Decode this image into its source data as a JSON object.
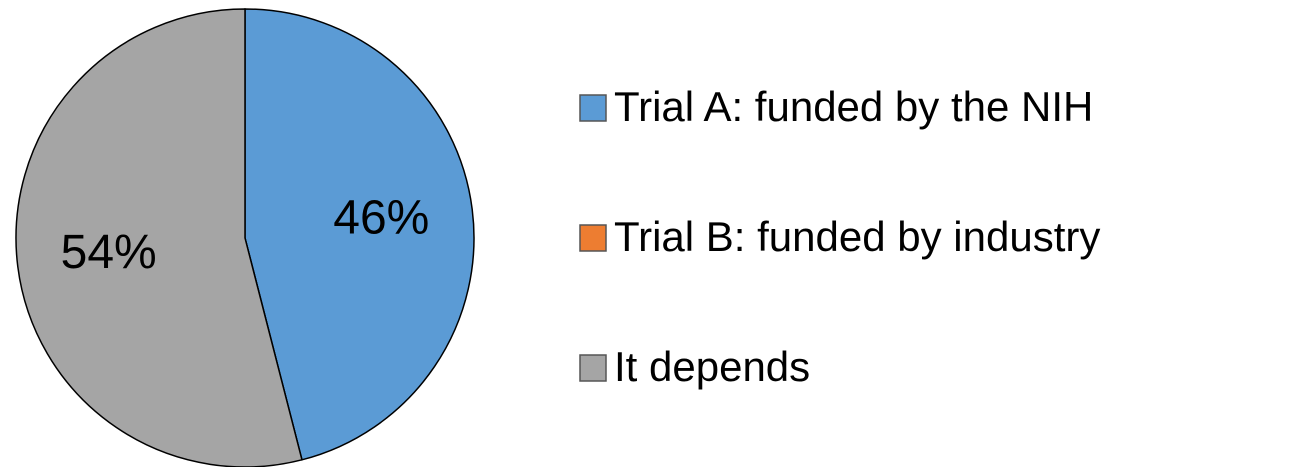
{
  "chart_data": {
    "type": "pie",
    "categories": [
      "Trial A: funded by the NIH",
      "Trial B: funded by industry",
      "It depends"
    ],
    "values": [
      46,
      0,
      54
    ],
    "value_labels": [
      "46%",
      null,
      "54%"
    ],
    "colors": [
      "#5b9bd5",
      "#ed7d31",
      "#a5a5a5"
    ],
    "legend": "right"
  }
}
